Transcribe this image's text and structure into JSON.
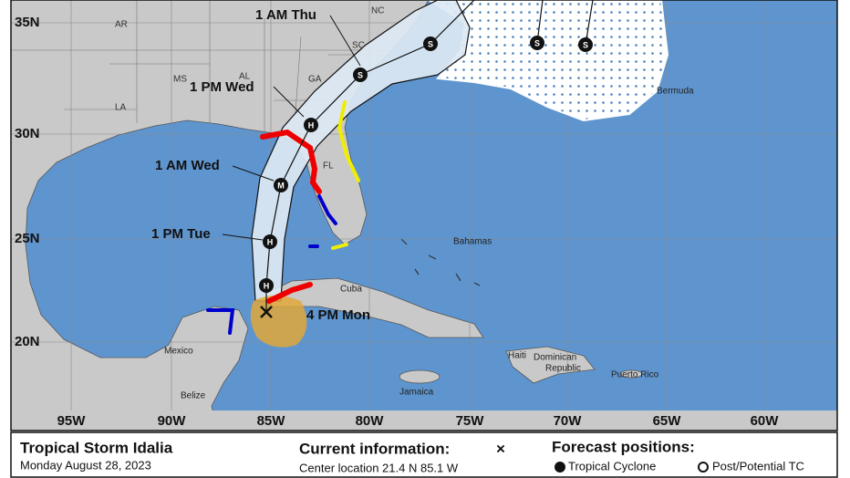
{
  "map": {
    "lat_labels": [
      "35N",
      "30N",
      "25N",
      "20N"
    ],
    "lon_labels": [
      "95W",
      "90W",
      "85W",
      "80W",
      "75W",
      "70W",
      "65W",
      "60W"
    ],
    "time_labels": [
      "1 AM Thu",
      "1 PM Wed",
      "1 AM Wed",
      "1 PM Tue",
      "4 PM Mon"
    ],
    "track_markers": [
      "S",
      "S",
      "S",
      "S",
      "H",
      "M",
      "H",
      "H"
    ],
    "states": [
      "NC",
      "SC",
      "GA",
      "AL",
      "MS",
      "LA",
      "AR",
      "FL"
    ],
    "places": [
      "Bermuda",
      "Bahamas",
      "Cuba",
      "Mexico",
      "Belize",
      "Jamaica",
      "Haiti",
      "Dominican",
      "Republic",
      "Puerto Rico"
    ]
  },
  "footer": {
    "storm_name": "Tropical Storm Idalia",
    "date": "Monday August 28, 2023",
    "current_title": "Current information:",
    "current_symbol": "×",
    "center_location": "Center location 21.4 N 85.1 W",
    "forecast_title": "Forecast positions:",
    "legend": [
      "Tropical Cyclone",
      "Post/Potential TC"
    ]
  }
}
